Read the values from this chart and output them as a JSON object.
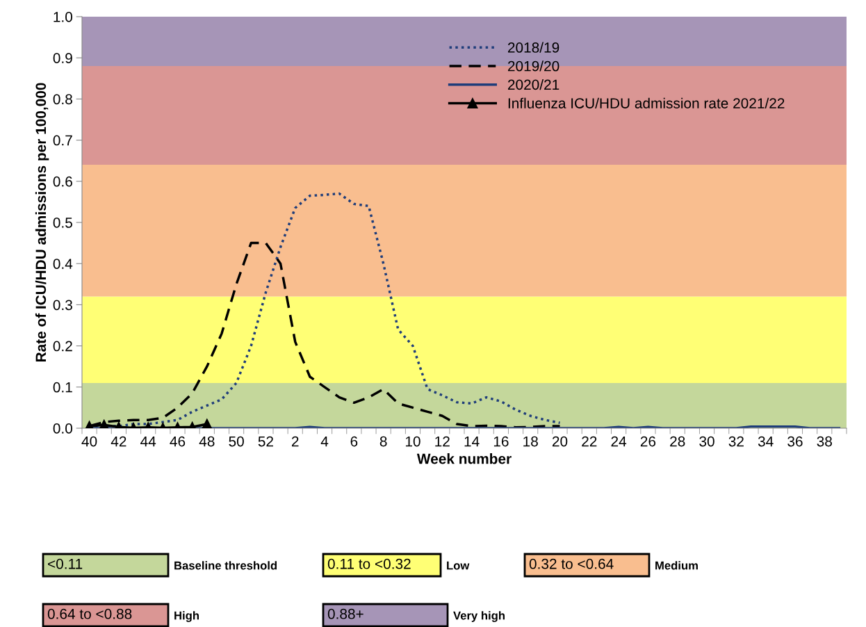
{
  "chart_data": {
    "type": "line",
    "xlabel": "Week number",
    "ylabel": "Rate of ICU/HDU admissions per 100,000",
    "categories": [
      "40",
      null,
      "42",
      null,
      "44",
      null,
      "46",
      null,
      "48",
      null,
      "50",
      null,
      "52",
      null,
      "2",
      null,
      "4",
      null,
      "6",
      null,
      "8",
      null,
      "10",
      null,
      "12",
      null,
      "14",
      null,
      "16",
      null,
      "18",
      null,
      "20",
      null,
      "22",
      null,
      "24",
      null,
      "26",
      null,
      "28",
      null,
      "30",
      null,
      "32",
      null,
      "34",
      null,
      "36",
      null,
      "38",
      null
    ],
    "series": [
      {
        "name": "2018/19",
        "color": "#1f3d7a",
        "line_style": "dotted",
        "marker": "none",
        "values": [
          0.005,
          0.005,
          0.005,
          0.01,
          0.01,
          0.015,
          0.02,
          0.04,
          0.055,
          0.07,
          0.11,
          0.2,
          0.33,
          0.44,
          0.535,
          0.565,
          0.567,
          0.57,
          0.545,
          0.54,
          0.4,
          0.24,
          0.2,
          0.095,
          0.08,
          0.063,
          0.06,
          0.075,
          0.065,
          0.045,
          0.03,
          0.02,
          0.013,
          null,
          null,
          null,
          null,
          null,
          null,
          null,
          null,
          null,
          null,
          null,
          null,
          null,
          null,
          null,
          null,
          null,
          null,
          null
        ]
      },
      {
        "name": "2019/20",
        "color": "#000000",
        "line_style": "dashed",
        "marker": "none",
        "values": [
          0.005,
          0.015,
          0.018,
          0.02,
          0.02,
          0.025,
          0.05,
          0.085,
          0.15,
          0.23,
          0.35,
          0.45,
          0.45,
          0.4,
          0.21,
          0.125,
          0.1,
          0.075,
          0.062,
          0.075,
          0.095,
          0.06,
          0.05,
          0.04,
          0.03,
          0.01,
          0.005,
          0.006,
          0.005,
          0.002,
          0.003,
          0.005,
          0.005,
          null,
          null,
          null,
          null,
          null,
          null,
          null,
          null,
          null,
          null,
          null,
          null,
          null,
          null,
          null,
          null,
          null,
          null,
          null
        ]
      },
      {
        "name": "2020/21",
        "color": "#1f3d7a",
        "line_style": "solid",
        "marker": "none",
        "values": [
          0,
          0,
          0,
          0,
          0,
          0,
          0,
          0,
          0,
          0,
          0,
          0,
          0,
          0,
          0,
          0.003,
          0,
          0,
          0,
          0,
          0,
          0,
          0,
          0,
          0,
          0,
          0,
          0,
          0,
          0,
          0,
          0,
          0,
          0,
          0,
          0,
          0.003,
          0,
          0.003,
          0,
          0,
          0,
          0,
          0,
          0,
          0.004,
          0.004,
          0.004,
          0.004,
          0,
          0,
          0
        ]
      },
      {
        "name": "Influenza ICU/HDU admission rate 2021/22",
        "color": "#000000",
        "line_style": "solid",
        "marker": "triangle",
        "values": [
          0.005,
          0.008,
          0.003,
          0.001,
          0.002,
          0.001,
          0.002,
          0.003,
          0.01,
          null,
          null,
          null,
          null,
          null,
          null,
          null,
          null,
          null,
          null,
          null,
          null,
          null,
          null,
          null,
          null,
          null,
          null,
          null,
          null,
          null,
          null,
          null,
          null,
          null,
          null,
          null,
          null,
          null,
          null,
          null,
          null,
          null,
          null,
          null,
          null,
          null,
          null,
          null,
          null,
          null,
          null,
          null
        ]
      }
    ],
    "ylim": [
      0,
      1
    ],
    "yticks": [
      {
        "value": 0,
        "label": "0.0"
      },
      0.1,
      0.2,
      0.3,
      0.4,
      0.5,
      0.6,
      0.7,
      0.8,
      0.9,
      {
        "value": 1,
        "label": "1.0"
      }
    ],
    "bands": [
      {
        "axis": "y",
        "from": 0,
        "to": 0.11,
        "color": "#c4d79b"
      },
      {
        "axis": "y",
        "from": 0.11,
        "to": 0.32,
        "color": "#ffff75"
      },
      {
        "axis": "y",
        "from": 0.32,
        "to": 0.64,
        "color": "#f9be8f"
      },
      {
        "axis": "y",
        "from": 0.64,
        "to": 0.88,
        "color": "#da9694"
      },
      {
        "axis": "y",
        "from": 0.88,
        "to": 1.0,
        "color": "#a695b7"
      }
    ],
    "annotations": [
      "<0.11",
      "Baseline threshold",
      "0.11 to <0.32",
      "Low",
      "0.32 to <0.64",
      "Medium",
      "0.64 to <0.88",
      "High",
      "0.88+",
      "Very high"
    ],
    "legend": "top",
    "grid": false
  }
}
